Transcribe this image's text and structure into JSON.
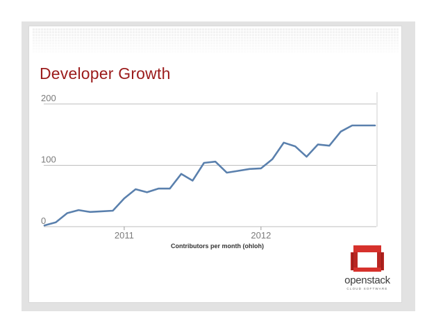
{
  "slide": {
    "title": "Developer Growth",
    "caption": "Contributors per month (ohloh)"
  },
  "logo": {
    "word": "openstack",
    "sub": "CLOUD SOFTWARE"
  },
  "colors": {
    "title": "#9b1b1b",
    "line": "#5a80ad",
    "grid": "#bdbdbd",
    "logo": "#d6312c"
  },
  "chart_data": {
    "type": "line",
    "title": "Developer Growth",
    "xlabel": "Contributors per month (ohloh)",
    "ylabel": "",
    "ylim": [
      0,
      200
    ],
    "yticks": [
      0,
      100,
      200
    ],
    "xtick_labels": [
      "2011",
      "2012"
    ],
    "grid": true,
    "x": [
      "2010-06",
      "2010-07",
      "2010-08",
      "2010-09",
      "2010-10",
      "2010-11",
      "2010-12",
      "2011-01",
      "2011-02",
      "2011-03",
      "2011-04",
      "2011-05",
      "2011-06",
      "2011-07",
      "2011-08",
      "2011-09",
      "2011-10",
      "2011-11",
      "2011-12",
      "2012-01",
      "2012-02",
      "2012-03",
      "2012-04",
      "2012-05",
      "2012-06",
      "2012-07",
      "2012-08",
      "2012-09",
      "2012-10",
      "2012-11"
    ],
    "series": [
      {
        "values": [
          2,
          7,
          22,
          27,
          24,
          25,
          26,
          46,
          61,
          56,
          62,
          62,
          86,
          75,
          104,
          106,
          88,
          91,
          94,
          95,
          110,
          137,
          131,
          114,
          134,
          132,
          155,
          165,
          165,
          165
        ]
      }
    ]
  }
}
